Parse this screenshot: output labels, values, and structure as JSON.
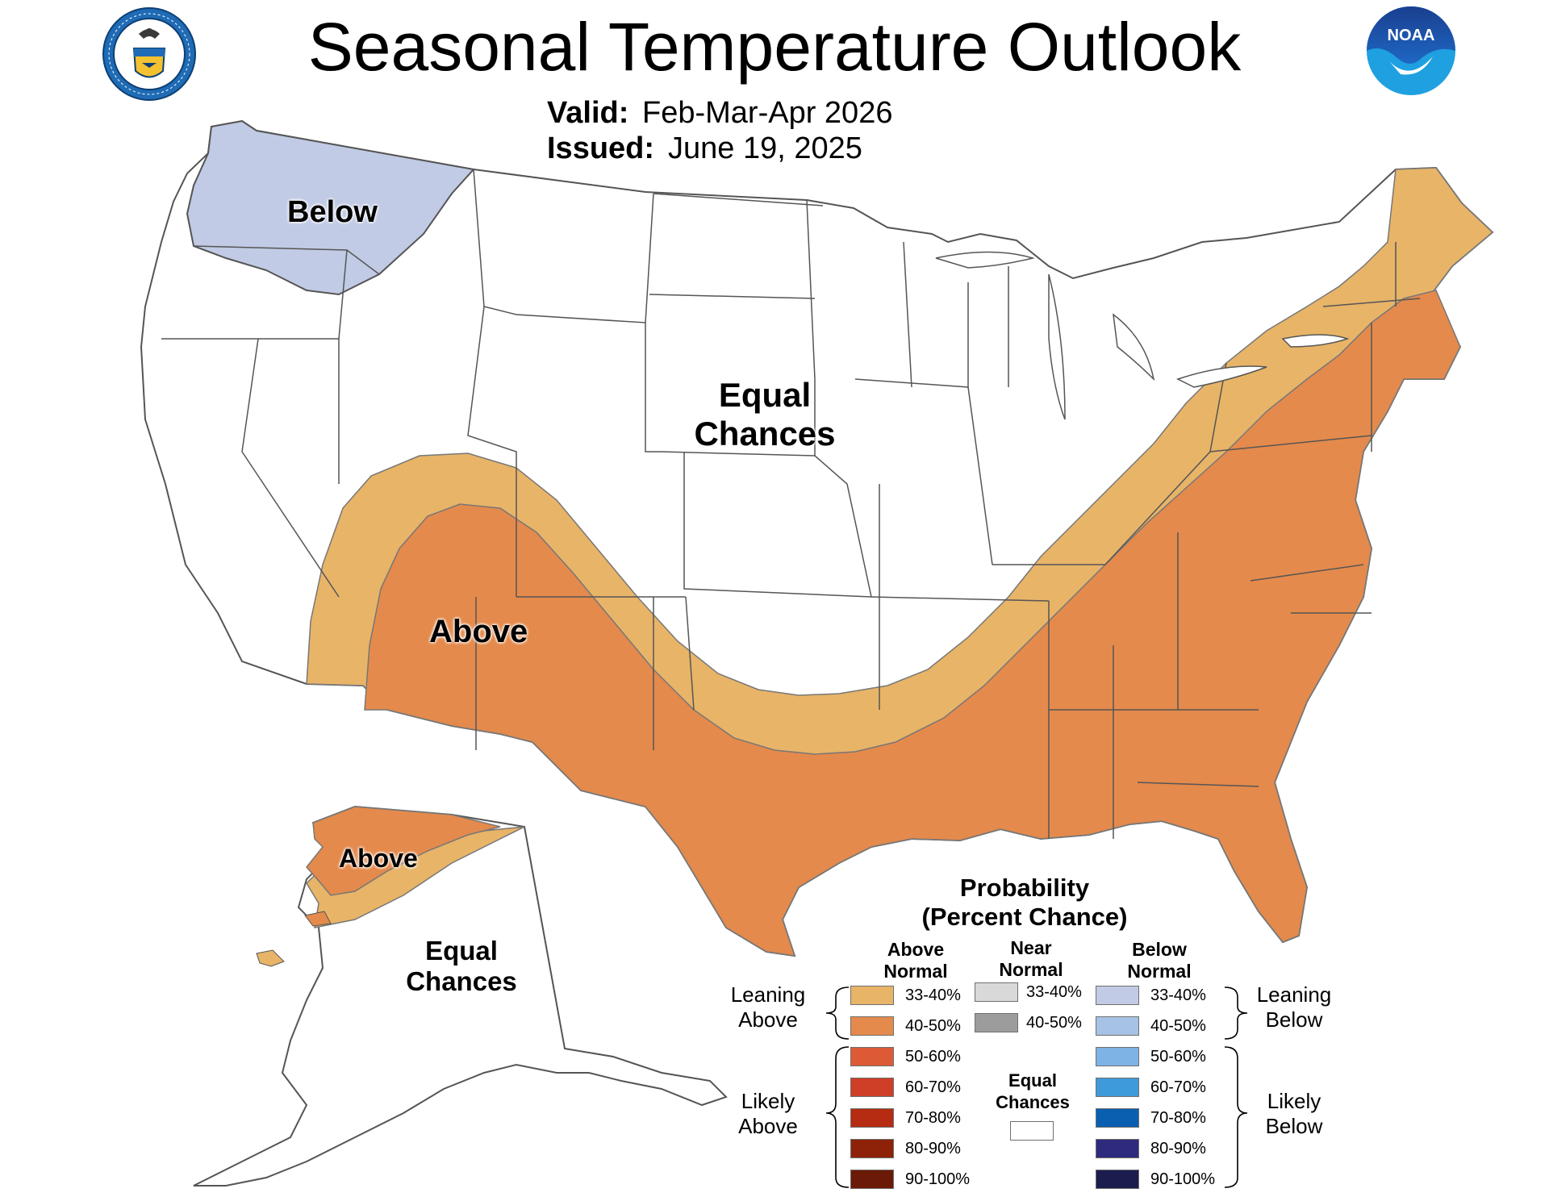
{
  "header": {
    "title": "Seasonal Temperature Outlook",
    "valid_label": "Valid:",
    "valid_value": "Feb-Mar-Apr 2026",
    "issued_label": "Issued:",
    "issued_value": "June 19, 2025"
  },
  "logos": {
    "commerce_seal": "department-of-commerce-seal",
    "noaa_logo_text": "NOAA"
  },
  "map_labels": {
    "below": "Below",
    "equal_chances_l1": "Equal",
    "equal_chances_l2": "Chances",
    "above": "Above",
    "alaska_above": "Above",
    "alaska_equal_l1": "Equal",
    "alaska_equal_l2": "Chances"
  },
  "legend": {
    "title_l1": "Probability",
    "title_l2": "(Percent Chance)",
    "col_above_l1": "Above",
    "col_above_l2": "Normal",
    "col_near_l1": "Near",
    "col_near_l2": "Normal",
    "col_below_l1": "Below",
    "col_below_l2": "Normal",
    "leaning_above_l1": "Leaning",
    "leaning_above_l2": "Above",
    "likely_above_l1": "Likely",
    "likely_above_l2": "Above",
    "leaning_below_l1": "Leaning",
    "leaning_below_l2": "Below",
    "likely_below_l1": "Likely",
    "likely_below_l2": "Below",
    "equal_chances_l1": "Equal",
    "equal_chances_l2": "Chances",
    "above": [
      {
        "label": "33-40%",
        "color": "#e8b468"
      },
      {
        "label": "40-50%",
        "color": "#e48a4c"
      },
      {
        "label": "50-60%",
        "color": "#dd5a37"
      },
      {
        "label": "60-70%",
        "color": "#cf3e26"
      },
      {
        "label": "70-80%",
        "color": "#b52c12"
      },
      {
        "label": "80-90%",
        "color": "#8e2208"
      },
      {
        "label": "90-100%",
        "color": "#6a1a06"
      }
    ],
    "near": [
      {
        "label": "33-40%",
        "color": "#d9d9d9"
      },
      {
        "label": "40-50%",
        "color": "#9c9c9c"
      }
    ],
    "below": [
      {
        "label": "33-40%",
        "color": "#c1cbe5"
      },
      {
        "label": "40-50%",
        "color": "#a6c3e6"
      },
      {
        "label": "50-60%",
        "color": "#7db3e5"
      },
      {
        "label": "60-70%",
        "color": "#3e9ada"
      },
      {
        "label": "70-80%",
        "color": "#0a5fb0"
      },
      {
        "label": "80-90%",
        "color": "#2e2a7e"
      },
      {
        "label": "90-100%",
        "color": "#1c1c4e"
      }
    ],
    "equal_color": "#ffffff"
  },
  "map_colors": {
    "below_33_40": "#c1cbe5",
    "above_33_40": "#e8b468",
    "above_40_50": "#e48a4c",
    "border": "#555555"
  }
}
